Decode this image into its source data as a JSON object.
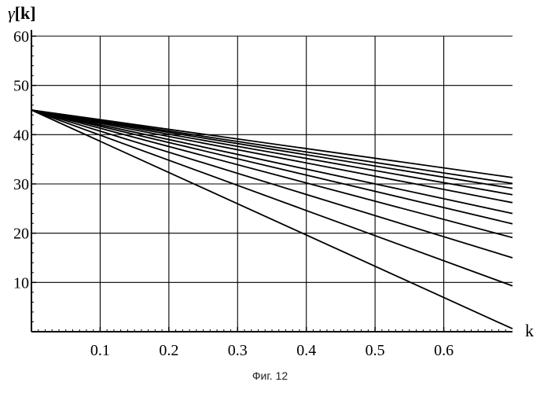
{
  "chart_data": {
    "type": "line",
    "ylabel_symbol": "γ",
    "ylabel_arg": "[k]",
    "xlabel": "k",
    "xlim": [
      0,
      0.7
    ],
    "ylim": [
      0,
      60
    ],
    "x_ticks": [
      "0.1",
      "0.2",
      "0.3",
      "0.4",
      "0.5",
      "0.6"
    ],
    "y_ticks": [
      "10",
      "20",
      "30",
      "40",
      "50",
      "60"
    ],
    "grid": true,
    "line_color": "#000000",
    "series": [
      {
        "x": [
          0,
          0.7
        ],
        "y": [
          45,
          31.3
        ]
      },
      {
        "x": [
          0,
          0.7
        ],
        "y": [
          45,
          30.1
        ]
      },
      {
        "x": [
          0,
          0.7
        ],
        "y": [
          45,
          29.1
        ]
      },
      {
        "x": [
          0,
          0.7
        ],
        "y": [
          45,
          27.8
        ]
      },
      {
        "x": [
          0,
          0.7
        ],
        "y": [
          45,
          26.2
        ]
      },
      {
        "x": [
          0,
          0.7
        ],
        "y": [
          45,
          24.0
        ]
      },
      {
        "x": [
          0,
          0.7
        ],
        "y": [
          45,
          21.9
        ]
      },
      {
        "x": [
          0,
          0.7
        ],
        "y": [
          45,
          19.1
        ]
      },
      {
        "x": [
          0,
          0.7
        ],
        "y": [
          45,
          15.0
        ]
      },
      {
        "x": [
          0,
          0.7
        ],
        "y": [
          45,
          9.3
        ]
      },
      {
        "x": [
          0,
          0.7
        ],
        "y": [
          45,
          0.6
        ]
      }
    ]
  },
  "caption": "Фиг. 12"
}
